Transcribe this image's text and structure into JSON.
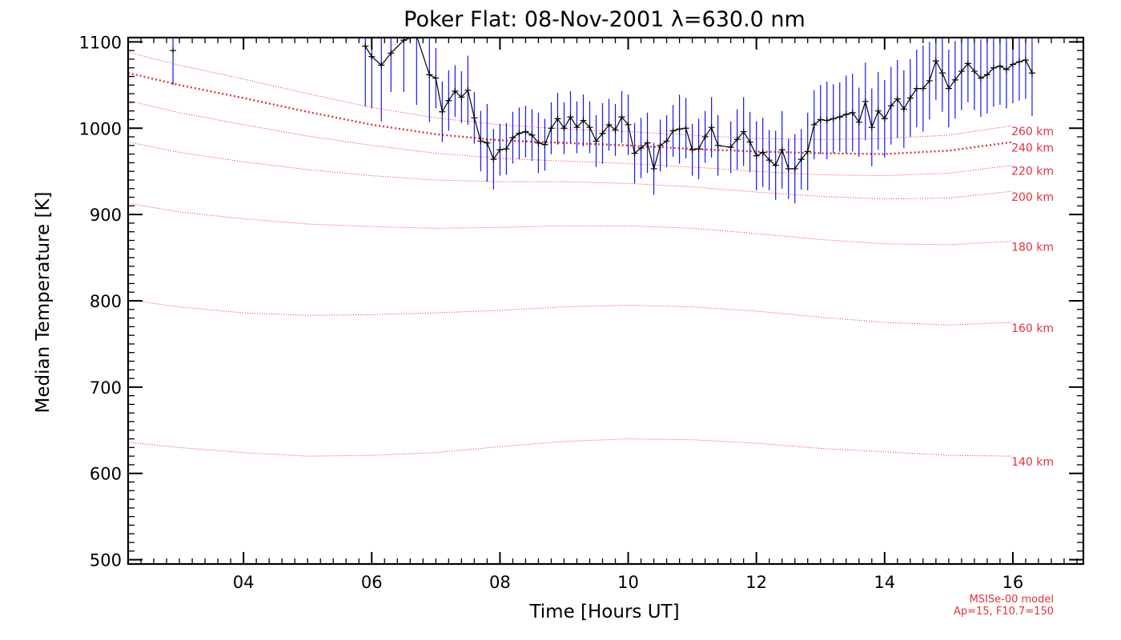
{
  "chart_data": {
    "type": "line",
    "title": "Poker Flat: 08-Nov-2001 λ=630.0 nm",
    "xlabel": "Time [Hours UT]",
    "ylabel": "Median Temperature [K]",
    "xlim": [
      2.2,
      17.1
    ],
    "ylim": [
      495,
      1105
    ],
    "xticks": [
      4,
      6,
      8,
      10,
      12,
      14,
      16
    ],
    "xtick_labels": [
      "04",
      "06",
      "08",
      "10",
      "12",
      "14",
      "16"
    ],
    "yticks": [
      500,
      600,
      700,
      800,
      900,
      1000,
      1100
    ],
    "ytick_labels": [
      "500",
      "600",
      "700",
      "800",
      "900",
      "1000",
      "1100"
    ],
    "grid": false,
    "annotations": [
      "MSISe-00 model",
      "Ap=15, F10.7=150"
    ],
    "colors": {
      "observed": "#000000",
      "error_bars": "#1414ff",
      "model": "#e8303a"
    },
    "model_curves": [
      {
        "label": "140 km",
        "x": [
          2.2,
          3,
          4,
          5,
          6,
          7,
          8,
          9,
          10,
          11,
          12,
          13,
          14,
          15,
          16
        ],
        "y": [
          636,
          630,
          624,
          620,
          621,
          624,
          631,
          637,
          640,
          639,
          635,
          629,
          625,
          621,
          620
        ]
      },
      {
        "label": "160 km",
        "x": [
          2.2,
          3,
          4,
          5,
          6,
          7,
          8,
          9,
          10,
          11,
          12,
          13,
          14,
          15,
          16
        ],
        "y": [
          801,
          793,
          786,
          783,
          784,
          786,
          789,
          793,
          795,
          793,
          788,
          781,
          775,
          772,
          775
        ]
      },
      {
        "label": "180 km",
        "x": [
          2.2,
          3,
          4,
          5,
          6,
          7,
          8,
          9,
          10,
          11,
          12,
          13,
          14,
          15,
          16
        ],
        "y": [
          913,
          903,
          895,
          889,
          886,
          884,
          885,
          887,
          887,
          884,
          878,
          871,
          866,
          865,
          869
        ]
      },
      {
        "label": "200 km",
        "x": [
          2.2,
          3,
          4,
          5,
          6,
          7,
          8,
          9,
          10,
          11,
          12,
          13,
          14,
          15,
          16
        ],
        "y": [
          984,
          972,
          961,
          952,
          945,
          940,
          938,
          938,
          936,
          932,
          926,
          921,
          918,
          919,
          927
        ]
      },
      {
        "label": "220 km",
        "x": [
          2.2,
          3,
          4,
          5,
          6,
          7,
          8,
          9,
          10,
          11,
          12,
          13,
          14,
          15,
          16
        ],
        "y": [
          1032,
          1018,
          1004,
          991,
          980,
          971,
          965,
          962,
          959,
          955,
          950,
          946,
          945,
          948,
          957
        ]
      },
      {
        "label": "240 km",
        "x": [
          2.2,
          3,
          4,
          5,
          6,
          7,
          8,
          9,
          10,
          11,
          12,
          13,
          14,
          15,
          16
        ],
        "y": [
          1064,
          1050,
          1035,
          1019,
          1004,
          993,
          986,
          983,
          980,
          976,
          973,
          971,
          970,
          974,
          984
        ]
      },
      {
        "label": "260 km",
        "x": [
          2.2,
          3,
          4,
          5,
          6,
          7,
          8,
          9,
          10,
          11,
          12,
          13,
          14,
          15,
          16
        ],
        "y": [
          1088,
          1073,
          1057,
          1040,
          1024,
          1012,
          1004,
          999,
          996,
          992,
          988,
          987,
          988,
          992,
          1003
        ]
      }
    ],
    "observed": {
      "name": "median temperature",
      "x": [
        2.9,
        5.9,
        6.0,
        6.15,
        6.3,
        6.5,
        6.7,
        6.9,
        7.0,
        7.1,
        7.2,
        7.3,
        7.4,
        7.5,
        7.6,
        7.7,
        7.8,
        7.9,
        8.0,
        8.1,
        8.2,
        8.3,
        8.4,
        8.5,
        8.6,
        8.7,
        8.8,
        8.9,
        9.0,
        9.1,
        9.2,
        9.3,
        9.4,
        9.5,
        9.6,
        9.7,
        9.8,
        9.9,
        10.0,
        10.1,
        10.2,
        10.3,
        10.4,
        10.5,
        10.6,
        10.7,
        10.8,
        10.9,
        11.0,
        11.1,
        11.2,
        11.3,
        11.4,
        11.6,
        11.7,
        11.8,
        11.9,
        12.0,
        12.1,
        12.2,
        12.3,
        12.4,
        12.5,
        12.6,
        12.7,
        12.8,
        12.9,
        13.0,
        13.1,
        13.2,
        13.3,
        13.4,
        13.5,
        13.6,
        13.7,
        13.8,
        13.9,
        14.0,
        14.1,
        14.2,
        14.3,
        14.4,
        14.5,
        14.6,
        14.7,
        14.8,
        14.9,
        15.0,
        15.1,
        15.2,
        15.3,
        15.4,
        15.5,
        15.6,
        15.7,
        15.8,
        15.9,
        16.0,
        16.1,
        16.2,
        16.3
      ],
      "y": [
        1090,
        1095,
        1083,
        1073,
        1087,
        1102,
        1107,
        1062,
        1058,
        1019,
        1032,
        1043,
        1036,
        1044,
        1012,
        985,
        983,
        964,
        975,
        976,
        989,
        994,
        996,
        992,
        983,
        981,
        1000,
        1011,
        1000,
        1013,
        1001,
        1009,
        1001,
        985,
        994,
        1004,
        998,
        1013,
        1004,
        971,
        977,
        983,
        953,
        980,
        985,
        997,
        999,
        1000,
        975,
        976,
        990,
        1001,
        980,
        978,
        987,
        996,
        984,
        968,
        972,
        963,
        957,
        975,
        953,
        953,
        964,
        973,
        1004,
        1010,
        1009,
        1011,
        1013,
        1016,
        1018,
        1007,
        1031,
        1001,
        1020,
        1011,
        1026,
        1034,
        1022,
        1035,
        1046,
        1046,
        1055,
        1078,
        1064,
        1046,
        1056,
        1066,
        1075,
        1066,
        1058,
        1062,
        1070,
        1072,
        1068,
        1074,
        1077,
        1079,
        1064
      ],
      "err": [
        40,
        70,
        60,
        65,
        45,
        60,
        80,
        55,
        35,
        35,
        35,
        30,
        30,
        40,
        30,
        35,
        45,
        35,
        30,
        30,
        30,
        30,
        30,
        30,
        35,
        30,
        30,
        30,
        30,
        30,
        30,
        30,
        30,
        30,
        35,
        30,
        30,
        30,
        35,
        35,
        35,
        35,
        30,
        30,
        30,
        30,
        40,
        35,
        30,
        35,
        30,
        35,
        35,
        30,
        35,
        40,
        35,
        40,
        40,
        35,
        40,
        45,
        35,
        40,
        35,
        45,
        40,
        40,
        45,
        40,
        40,
        45,
        45,
        40,
        45,
        45,
        45,
        45,
        45,
        45,
        45,
        45,
        45,
        50,
        45,
        45,
        45,
        45,
        45,
        45,
        45,
        45,
        45,
        45,
        45,
        45,
        45,
        45,
        45,
        45,
        50
      ]
    }
  }
}
